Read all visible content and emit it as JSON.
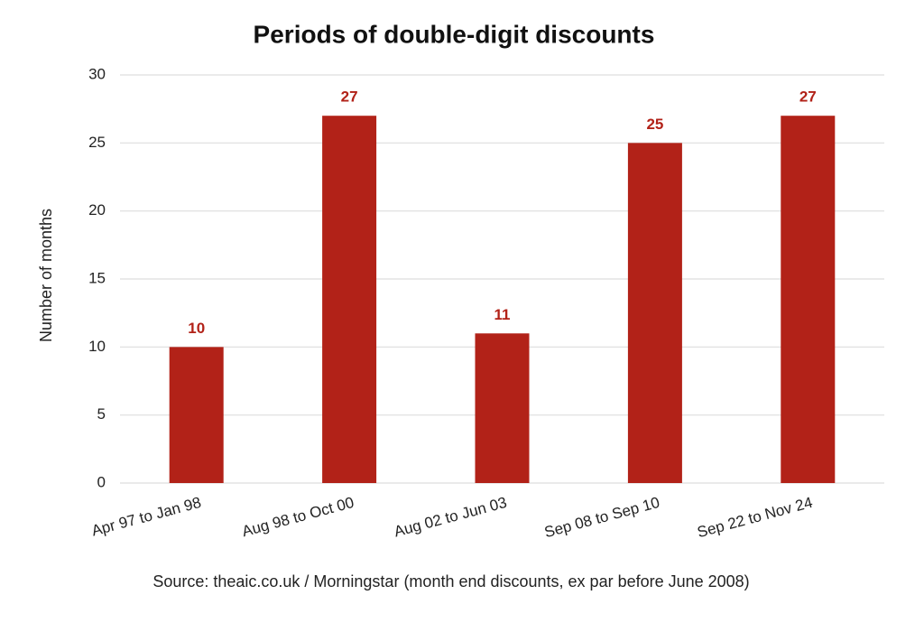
{
  "chart_data": {
    "type": "bar",
    "title": "Periods of double-digit discounts",
    "y_label": "Number of months",
    "source": "Source: theaic.co.uk / Morningstar (month end discounts, ex par before June 2008)",
    "categories": [
      "Apr 97 to Jan 98",
      "Aug 98 to Oct 00",
      "Aug 02 to Jun 03",
      "Sep 08 to Sep 10",
      "Sep 22 to Nov 24"
    ],
    "values": [
      10,
      27,
      11,
      25,
      27
    ],
    "color": "#b22218",
    "ylim": [
      0,
      30
    ],
    "yticks": [
      0,
      5,
      10,
      15,
      20,
      25,
      30
    ],
    "grid": true
  }
}
